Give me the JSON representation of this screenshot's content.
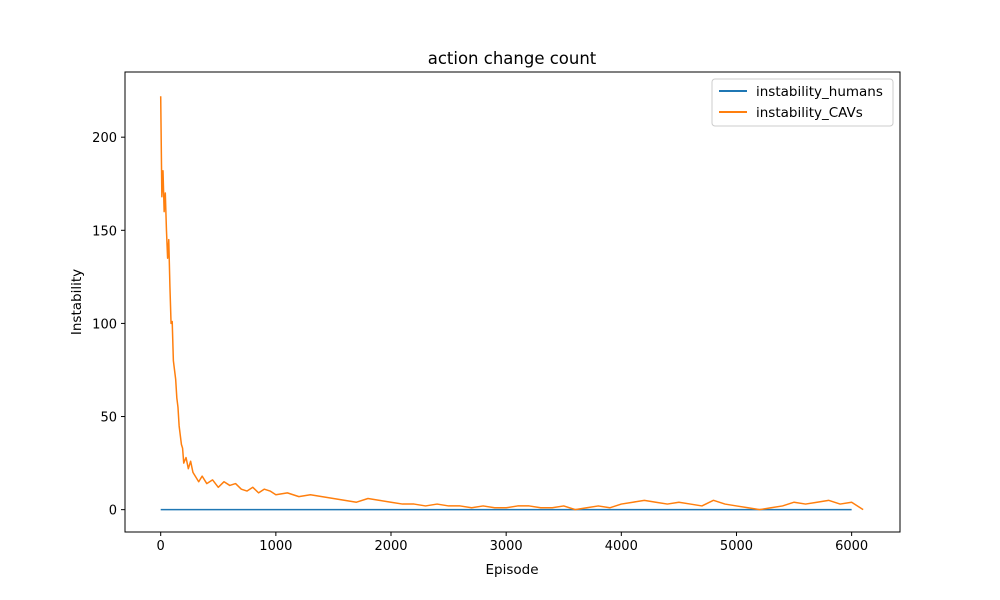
{
  "chart_data": {
    "type": "line",
    "title": "action change count",
    "xlabel": "Episode",
    "ylabel": "Instability",
    "xlim": [
      -310,
      6420
    ],
    "ylim": [
      -12,
      235
    ],
    "xticks": [
      0,
      1000,
      2000,
      3000,
      4000,
      5000,
      6000
    ],
    "yticks": [
      0,
      50,
      100,
      150,
      200
    ],
    "legend_position": "top-right",
    "grid": false,
    "series": [
      {
        "name": "instability_humans",
        "color": "#1f77b4",
        "x": [
          0,
          6000
        ],
        "values": [
          0,
          0
        ]
      },
      {
        "name": "instability_CAVs",
        "color": "#ff7f0e",
        "x": [
          0,
          10,
          20,
          30,
          40,
          50,
          60,
          70,
          80,
          90,
          100,
          110,
          120,
          130,
          140,
          150,
          160,
          170,
          180,
          190,
          200,
          220,
          240,
          260,
          280,
          300,
          330,
          360,
          400,
          450,
          500,
          550,
          600,
          650,
          700,
          750,
          800,
          850,
          900,
          950,
          1000,
          1100,
          1200,
          1300,
          1400,
          1500,
          1600,
          1700,
          1800,
          1900,
          2000,
          2100,
          2200,
          2300,
          2400,
          2500,
          2600,
          2700,
          2800,
          2900,
          3000,
          3100,
          3200,
          3300,
          3400,
          3500,
          3600,
          3700,
          3800,
          3900,
          4000,
          4100,
          4200,
          4300,
          4400,
          4500,
          4600,
          4700,
          4800,
          4900,
          5000,
          5100,
          5200,
          5300,
          5400,
          5500,
          5600,
          5700,
          5800,
          5900,
          6000,
          6100
        ],
        "values": [
          222,
          168,
          182,
          160,
          170,
          150,
          135,
          145,
          120,
          100,
          101,
          80,
          75,
          70,
          60,
          55,
          45,
          40,
          35,
          33,
          25,
          28,
          22,
          26,
          20,
          18,
          15,
          18,
          14,
          16,
          12,
          15,
          13,
          14,
          11,
          10,
          12,
          9,
          11,
          10,
          8,
          9,
          7,
          8,
          7,
          6,
          5,
          4,
          6,
          5,
          4,
          3,
          3,
          2,
          3,
          2,
          2,
          1,
          2,
          1,
          1,
          2,
          2,
          1,
          1,
          2,
          0,
          1,
          2,
          1,
          3,
          4,
          5,
          4,
          3,
          4,
          3,
          2,
          5,
          3,
          2,
          1,
          0,
          1,
          2,
          4,
          3,
          4,
          5,
          3,
          4,
          0
        ]
      }
    ]
  }
}
